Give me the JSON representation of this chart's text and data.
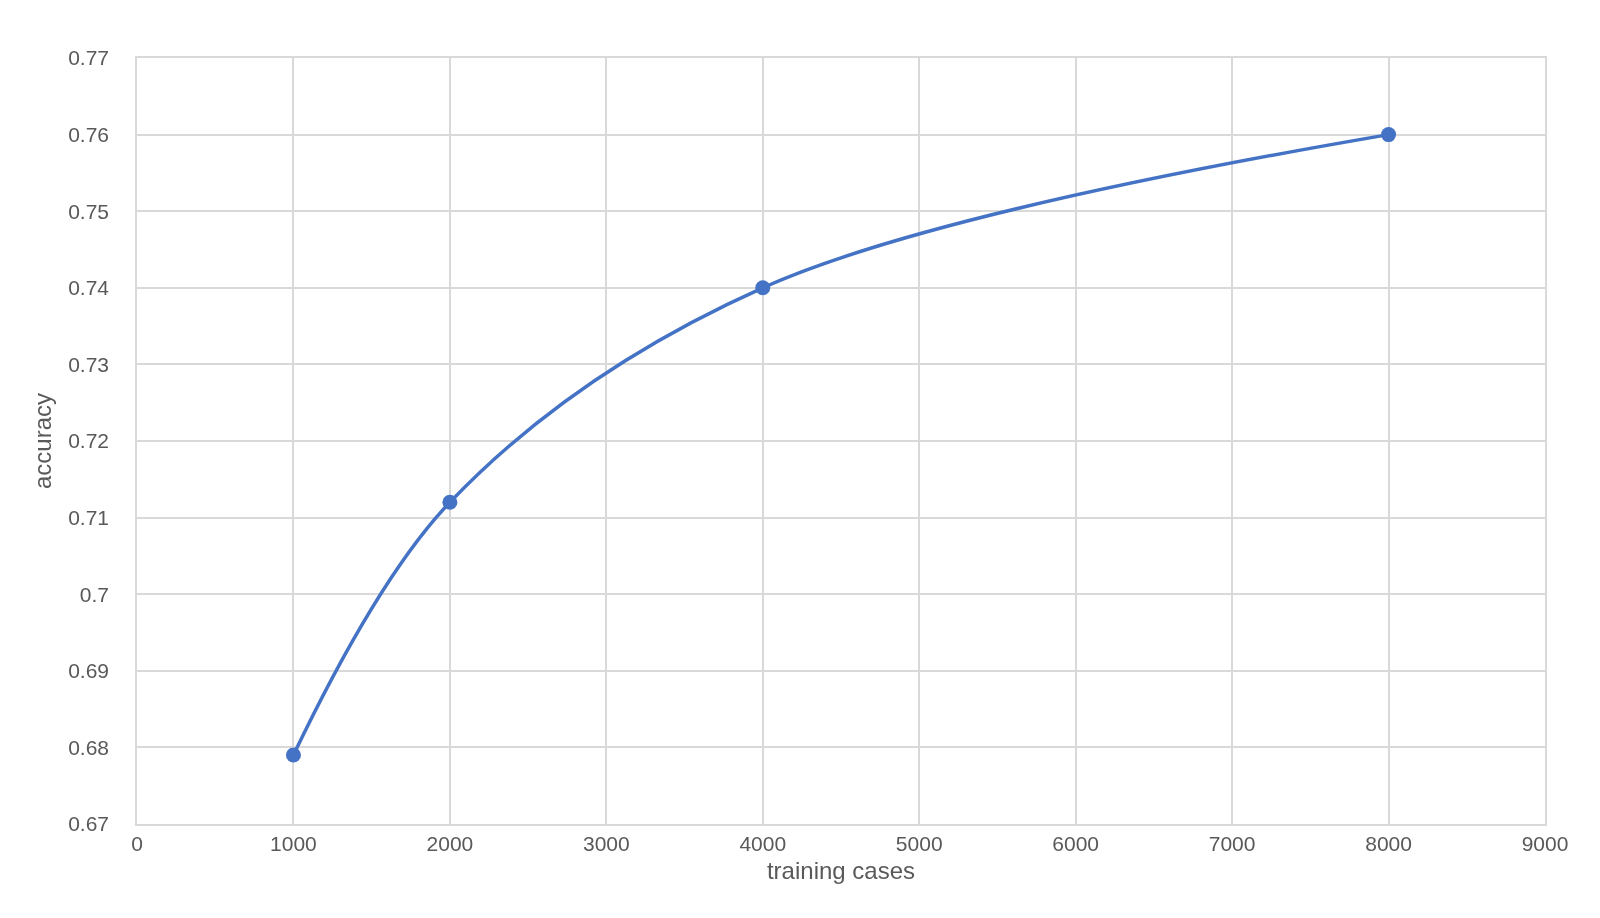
{
  "chart_data": {
    "type": "line",
    "xlabel": "training cases",
    "ylabel": "accuracy",
    "x": [
      1000,
      2000,
      4000,
      8000
    ],
    "series": [
      {
        "color": "#4472c4",
        "values": [
          0.679,
          0.712,
          0.74,
          0.76
        ]
      }
    ],
    "xlim": [
      0,
      9000
    ],
    "xticks": [
      0,
      1000,
      2000,
      3000,
      4000,
      5000,
      6000,
      7000,
      8000,
      9000
    ],
    "ylim": [
      0.67,
      0.77
    ],
    "yticks": [
      0.67,
      0.68,
      0.69,
      0.7,
      0.71,
      0.72,
      0.73,
      0.74,
      0.75,
      0.76,
      0.77
    ],
    "grid": true,
    "marker": "circle",
    "line_style": "solid"
  }
}
